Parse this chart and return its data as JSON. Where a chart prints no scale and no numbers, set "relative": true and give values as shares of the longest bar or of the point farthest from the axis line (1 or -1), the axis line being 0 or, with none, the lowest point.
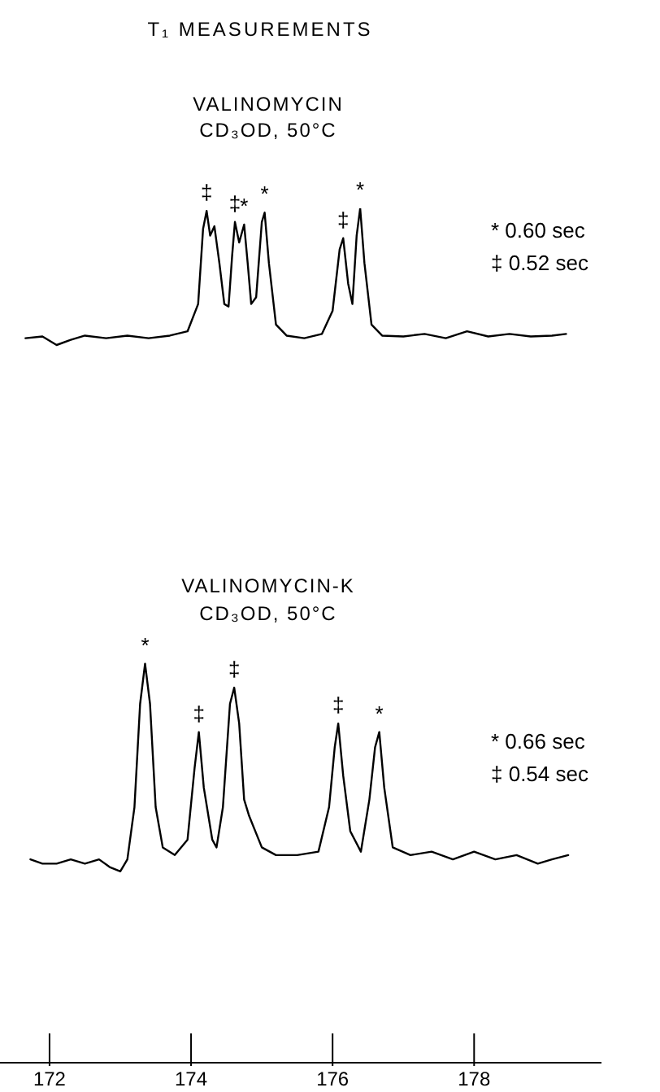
{
  "chart_data": {
    "type": "line",
    "title": "T₁ MEASUREMENTS",
    "relative": true,
    "xlim": [
      171.3,
      179.8
    ],
    "xticks": [
      172,
      174,
      176,
      178
    ],
    "tick_labels": "x",
    "grid": false,
    "legend": false,
    "marker": "none",
    "line_style": "solid",
    "series": [
      {
        "color": "#000000",
        "x": [
          171.66,
          171.9,
          172.1,
          172.3,
          172.5,
          172.8,
          173.1,
          173.4,
          173.7,
          173.95,
          174.1,
          174.17,
          174.22,
          174.27,
          174.33,
          174.4,
          174.47,
          174.53,
          174.58,
          174.62,
          174.68,
          174.75,
          174.8,
          174.85,
          174.92,
          175.0,
          175.04,
          175.1,
          175.2,
          175.35,
          175.6,
          175.85,
          176.0,
          176.1,
          176.15,
          176.22,
          176.28,
          176.34,
          176.39,
          176.45,
          176.55,
          176.7,
          177.0,
          177.3,
          177.6,
          177.9,
          178.2,
          178.5,
          178.8,
          179.1,
          179.3
        ],
        "values": [
          0.848,
          0.85,
          0.84,
          0.846,
          0.851,
          0.848,
          0.851,
          0.848,
          0.851,
          0.856,
          0.888,
          0.976,
          0.997,
          0.968,
          0.979,
          0.936,
          0.888,
          0.885,
          0.944,
          0.984,
          0.96,
          0.981,
          0.936,
          0.888,
          0.896,
          0.984,
          0.995,
          0.936,
          0.864,
          0.851,
          0.848,
          0.853,
          0.88,
          0.952,
          0.965,
          0.912,
          0.888,
          0.968,
          1.0,
          0.936,
          0.864,
          0.851,
          0.85,
          0.853,
          0.848,
          0.856,
          0.85,
          0.853,
          0.85,
          0.851,
          0.853
        ]
      },
      {
        "color": "#000000",
        "x": [
          171.73,
          171.9,
          172.1,
          172.3,
          172.5,
          172.7,
          172.85,
          173.0,
          173.1,
          173.2,
          173.28,
          173.35,
          173.42,
          173.5,
          173.6,
          173.77,
          173.95,
          174.05,
          174.11,
          174.18,
          174.3,
          174.36,
          174.45,
          174.55,
          174.61,
          174.68,
          174.75,
          174.82,
          175.0,
          175.2,
          175.5,
          175.8,
          175.95,
          176.03,
          176.08,
          176.15,
          176.25,
          176.4,
          176.52,
          176.6,
          176.66,
          176.73,
          176.85,
          177.1,
          177.4,
          177.7,
          178.0,
          178.3,
          178.6,
          178.9,
          179.1,
          179.33
        ],
        "values": [
          0.238,
          0.233,
          0.233,
          0.238,
          0.233,
          0.238,
          0.229,
          0.224,
          0.238,
          0.299,
          0.42,
          0.467,
          0.42,
          0.299,
          0.252,
          0.243,
          0.261,
          0.345,
          0.387,
          0.322,
          0.261,
          0.252,
          0.299,
          0.42,
          0.439,
          0.397,
          0.308,
          0.289,
          0.252,
          0.243,
          0.243,
          0.247,
          0.299,
          0.369,
          0.397,
          0.336,
          0.271,
          0.247,
          0.308,
          0.369,
          0.387,
          0.322,
          0.252,
          0.243,
          0.247,
          0.238,
          0.247,
          0.238,
          0.243,
          0.233,
          0.238,
          0.243
        ]
      }
    ],
    "annotations": [
      "VALINOMYCIN",
      "CD₃OD, 50°C",
      "* 0.60 sec",
      "‡ 0.52 sec",
      "VALINOMYCIN-K",
      "CD₃OD, 50°C",
      "* 0.66 sec",
      "‡ 0.54 sec",
      {
        "text": "‡",
        "x": 174.22,
        "y": 0.997
      },
      {
        "text": "‡",
        "x": 174.62,
        "y": 0.984
      },
      {
        "text": "*",
        "x": 174.75,
        "y": 0.981
      },
      {
        "text": "*",
        "x": 175.04,
        "y": 0.995
      },
      {
        "text": "‡",
        "x": 176.15,
        "y": 0.965
      },
      {
        "text": "*",
        "x": 176.39,
        "y": 1.0
      },
      {
        "text": "*",
        "x": 173.35,
        "y": 0.467
      },
      {
        "text": "‡",
        "x": 174.11,
        "y": 0.387
      },
      {
        "text": "‡",
        "x": 174.61,
        "y": 0.439
      },
      {
        "text": "‡",
        "x": 176.08,
        "y": 0.397
      },
      {
        "text": "*",
        "x": 176.66,
        "y": 0.387
      }
    ]
  }
}
